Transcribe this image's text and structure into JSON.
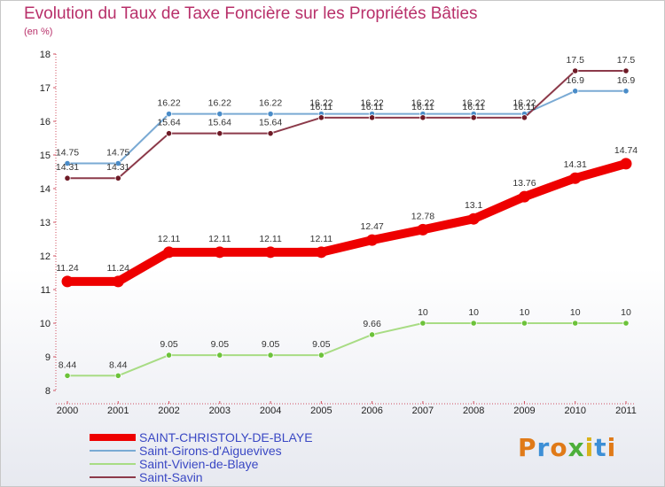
{
  "title": "Evolution du Taux de Taxe Foncière sur les Propriétés Bâties",
  "unit_label": "(en %)",
  "logo": {
    "letters": [
      "P",
      "r",
      "o",
      "x",
      "i",
      "t",
      "i"
    ],
    "colors": [
      "#e07a18",
      "#3d8fd6",
      "#e07a18",
      "#4caf3a",
      "#d9b21a",
      "#3d8fd6",
      "#e07a18"
    ]
  },
  "chart_data": {
    "type": "line",
    "title": "Evolution du Taux de Taxe Foncière sur les Propriétés Bâties",
    "ylabel": "(en %)",
    "xlabel": "",
    "x": [
      "2000",
      "2001",
      "2002",
      "2003",
      "2004",
      "2005",
      "2006",
      "2007",
      "2008",
      "2009",
      "2010",
      "2011"
    ],
    "ylim": [
      8,
      18
    ],
    "yticks": [
      8,
      9,
      10,
      11,
      12,
      13,
      14,
      15,
      16,
      17,
      18
    ],
    "series": [
      {
        "name": "SAINT-CHRISTOLY-DE-BLAYE",
        "color": "#ee0000",
        "emphasis": true,
        "values": [
          11.24,
          11.24,
          12.11,
          12.11,
          12.11,
          12.11,
          12.47,
          12.78,
          13.1,
          13.76,
          14.31,
          14.74
        ],
        "labels": [
          "11.24",
          "11.24",
          "12.11",
          "12.11",
          "12.11",
          "12.11",
          "12.47",
          "12.78",
          "13.1",
          "13.76",
          "14.31",
          "14.74"
        ]
      },
      {
        "name": "Saint-Girons-d'Aiguevives",
        "color": "#7aaad4",
        "marker": "#4a8cc8",
        "emphasis": false,
        "values": [
          14.75,
          14.75,
          16.22,
          16.22,
          16.22,
          16.22,
          16.22,
          16.22,
          16.22,
          16.22,
          16.9,
          16.9
        ],
        "labels": [
          "14.75",
          "14.75",
          "16.22",
          "16.22",
          "16.22",
          "16.22",
          "16.22",
          "16.22",
          "16.22",
          "16.22",
          "16.9",
          "16.9"
        ]
      },
      {
        "name": "Saint-Vivien-de-Blaye",
        "color": "#a8dc84",
        "marker": "#6cc23a",
        "emphasis": false,
        "values": [
          8.44,
          8.44,
          9.05,
          9.05,
          9.05,
          9.05,
          9.66,
          10,
          10,
          10,
          10,
          10
        ],
        "labels": [
          "8.44",
          "8.44",
          "9.05",
          "9.05",
          "9.05",
          "9.05",
          "9.66",
          "10",
          "10",
          "10",
          "10",
          "10"
        ]
      },
      {
        "name": "Saint-Savin",
        "color": "#8c3a4a",
        "marker": "#6e1a26",
        "emphasis": false,
        "values": [
          14.31,
          14.31,
          15.64,
          15.64,
          15.64,
          16.11,
          16.11,
          16.11,
          16.11,
          16.11,
          17.5,
          17.5
        ],
        "labels": [
          "14.31",
          "14.31",
          "15.64",
          "15.64",
          "15.64",
          "16.11",
          "16.11",
          "16.11",
          "16.11",
          "16.11",
          "17.5",
          "17.5"
        ]
      }
    ],
    "legend_position": "bottom-left",
    "grid": false
  }
}
